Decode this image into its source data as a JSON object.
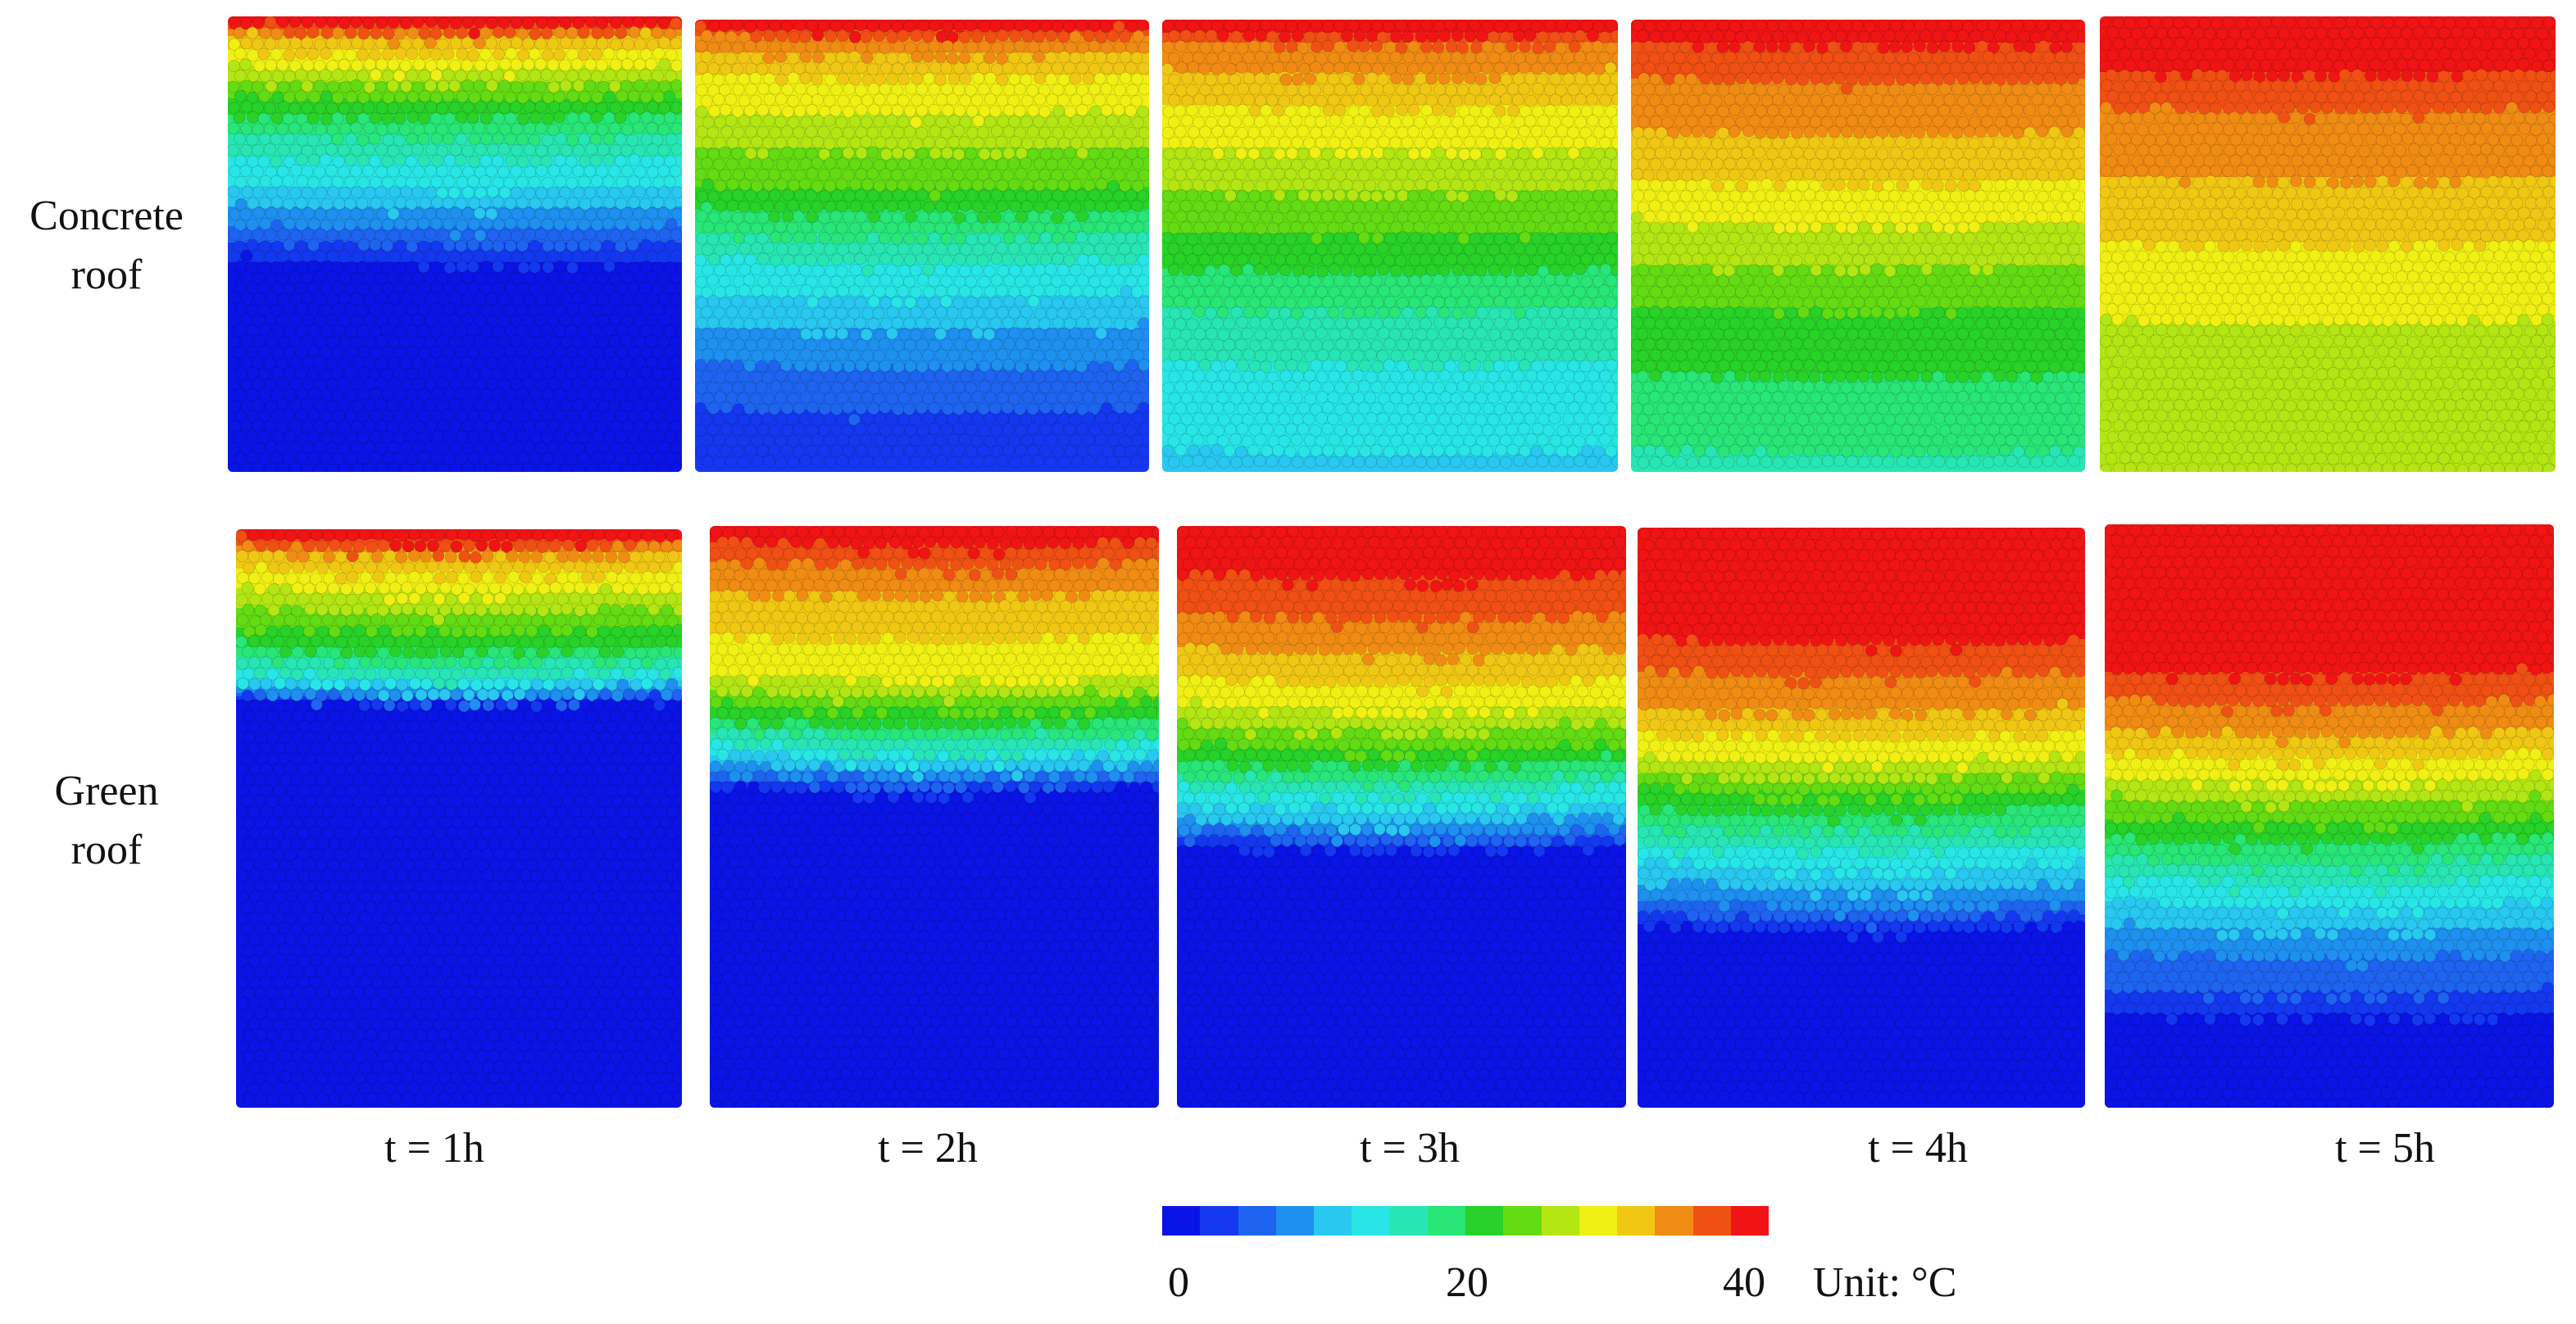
{
  "rows": {
    "concrete": {
      "line1": "Concrete",
      "line2": "roof"
    },
    "green": {
      "line1": "Green",
      "line2": "roof"
    }
  },
  "times": [
    "t = 1h",
    "t = 2h",
    "t = 3h",
    "t = 4h",
    "t = 5h"
  ],
  "colorbar": {
    "min_label": "0",
    "mid_label": "20",
    "max_label": "40",
    "unit": "Unit: °C",
    "range": [
      0,
      40
    ],
    "colors": [
      "#0a14e6",
      "#1438f0",
      "#1e64f0",
      "#1e90f0",
      "#28c8f0",
      "#28e6e6",
      "#28e6b4",
      "#28e678",
      "#28d228",
      "#64dc14",
      "#b4e614",
      "#f0f014",
      "#f0c814",
      "#f08c14",
      "#f05014",
      "#f01414"
    ]
  },
  "temperature_profiles": {
    "concrete": [
      [
        [
          0.0,
          40
        ],
        [
          0.04,
          32
        ],
        [
          0.1,
          28
        ],
        [
          0.18,
          22
        ],
        [
          0.28,
          16
        ],
        [
          0.38,
          12
        ],
        [
          0.48,
          6
        ],
        [
          0.54,
          2
        ],
        [
          0.56,
          0
        ],
        [
          1.0,
          0
        ]
      ],
      [
        [
          0.0,
          40
        ],
        [
          0.04,
          34
        ],
        [
          0.12,
          30
        ],
        [
          0.25,
          26
        ],
        [
          0.38,
          22
        ],
        [
          0.5,
          16
        ],
        [
          0.62,
          12
        ],
        [
          0.74,
          8
        ],
        [
          0.86,
          5
        ],
        [
          1.0,
          4
        ]
      ],
      [
        [
          0.0,
          40
        ],
        [
          0.05,
          35
        ],
        [
          0.15,
          31
        ],
        [
          0.3,
          27
        ],
        [
          0.45,
          23
        ],
        [
          0.55,
          20
        ],
        [
          0.65,
          17
        ],
        [
          0.8,
          14
        ],
        [
          1.0,
          12
        ]
      ],
      [
        [
          0.0,
          40
        ],
        [
          0.08,
          36
        ],
        [
          0.18,
          34
        ],
        [
          0.35,
          30
        ],
        [
          0.5,
          26
        ],
        [
          0.65,
          22
        ],
        [
          0.78,
          20
        ],
        [
          0.9,
          18
        ],
        [
          1.0,
          17
        ]
      ],
      [
        [
          0.0,
          40
        ],
        [
          0.1,
          38
        ],
        [
          0.2,
          35
        ],
        [
          0.38,
          32
        ],
        [
          0.55,
          29
        ],
        [
          0.7,
          27
        ],
        [
          0.85,
          25
        ],
        [
          1.0,
          25
        ]
      ]
    ],
    "green": [
      [
        [
          0.0,
          40
        ],
        [
          0.04,
          32
        ],
        [
          0.12,
          26
        ],
        [
          0.2,
          20
        ],
        [
          0.25,
          14
        ],
        [
          0.28,
          8
        ],
        [
          0.3,
          0
        ],
        [
          1.0,
          0
        ]
      ],
      [
        [
          0.0,
          40
        ],
        [
          0.04,
          36
        ],
        [
          0.12,
          32
        ],
        [
          0.25,
          28
        ],
        [
          0.33,
          20
        ],
        [
          0.38,
          14
        ],
        [
          0.42,
          8
        ],
        [
          0.45,
          2
        ],
        [
          0.46,
          0
        ],
        [
          1.0,
          0
        ]
      ],
      [
        [
          0.0,
          40
        ],
        [
          0.07,
          38
        ],
        [
          0.15,
          35
        ],
        [
          0.22,
          32
        ],
        [
          0.3,
          28
        ],
        [
          0.38,
          22
        ],
        [
          0.44,
          16
        ],
        [
          0.5,
          10
        ],
        [
          0.54,
          4
        ],
        [
          0.56,
          0
        ],
        [
          1.0,
          0
        ]
      ],
      [
        [
          0.0,
          40
        ],
        [
          0.14,
          40
        ],
        [
          0.22,
          36
        ],
        [
          0.3,
          33
        ],
        [
          0.4,
          27
        ],
        [
          0.48,
          20
        ],
        [
          0.56,
          14
        ],
        [
          0.64,
          8
        ],
        [
          0.68,
          3
        ],
        [
          0.7,
          0
        ],
        [
          1.0,
          0
        ]
      ],
      [
        [
          0.0,
          40
        ],
        [
          0.2,
          40
        ],
        [
          0.26,
          37
        ],
        [
          0.34,
          33
        ],
        [
          0.44,
          27
        ],
        [
          0.52,
          21
        ],
        [
          0.62,
          14
        ],
        [
          0.72,
          8
        ],
        [
          0.82,
          4
        ],
        [
          0.86,
          0
        ],
        [
          1.0,
          0
        ]
      ]
    ]
  }
}
